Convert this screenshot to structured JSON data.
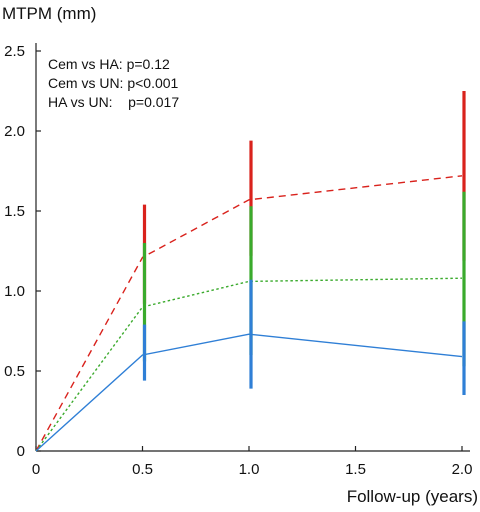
{
  "chart_data": {
    "type": "line",
    "title": "",
    "ylabel": "MTPM (mm)",
    "xlabel": "Follow-up (years)",
    "xlim": [
      0,
      2.0
    ],
    "ylim": [
      0,
      2.5
    ],
    "x_ticks": [
      0,
      0.5,
      1.0,
      1.5,
      2.0
    ],
    "x_tick_labels": [
      "0",
      "0.5",
      "1.0",
      "1.5",
      "2.0"
    ],
    "y_ticks": [
      0,
      0.5,
      1.0,
      1.5,
      2.0,
      2.5
    ],
    "y_tick_labels": [
      "0",
      "0.5",
      "1.0",
      "1.5",
      "2.0",
      "2.5"
    ],
    "annotations": [
      "Cem vs HA: p=0.12",
      "Cem vs UN: p<0.001",
      "HA vs UN:    p=0.017"
    ],
    "x": [
      0,
      0.5,
      1.0,
      2.0
    ],
    "series": [
      {
        "color": "#d9221c",
        "dash": "dashed",
        "values": [
          0,
          1.21,
          1.57,
          1.72
        ],
        "error_low": [
          null,
          0.92,
          1.22,
          1.19
        ],
        "error_high": [
          null,
          1.54,
          1.94,
          2.25
        ]
      },
      {
        "color": "#3aaa2c",
        "dash": "dotted",
        "values": [
          0,
          0.9,
          1.06,
          1.08
        ],
        "error_low": [
          null,
          0.56,
          0.6,
          0.53
        ],
        "error_high": [
          null,
          1.3,
          1.53,
          1.62
        ]
      },
      {
        "color": "#2f7fd6",
        "dash": "solid",
        "values": [
          0,
          0.6,
          0.73,
          0.59
        ],
        "error_low": [
          null,
          0.44,
          0.39,
          0.35
        ],
        "error_high": [
          null,
          0.79,
          1.07,
          0.81
        ]
      }
    ]
  }
}
